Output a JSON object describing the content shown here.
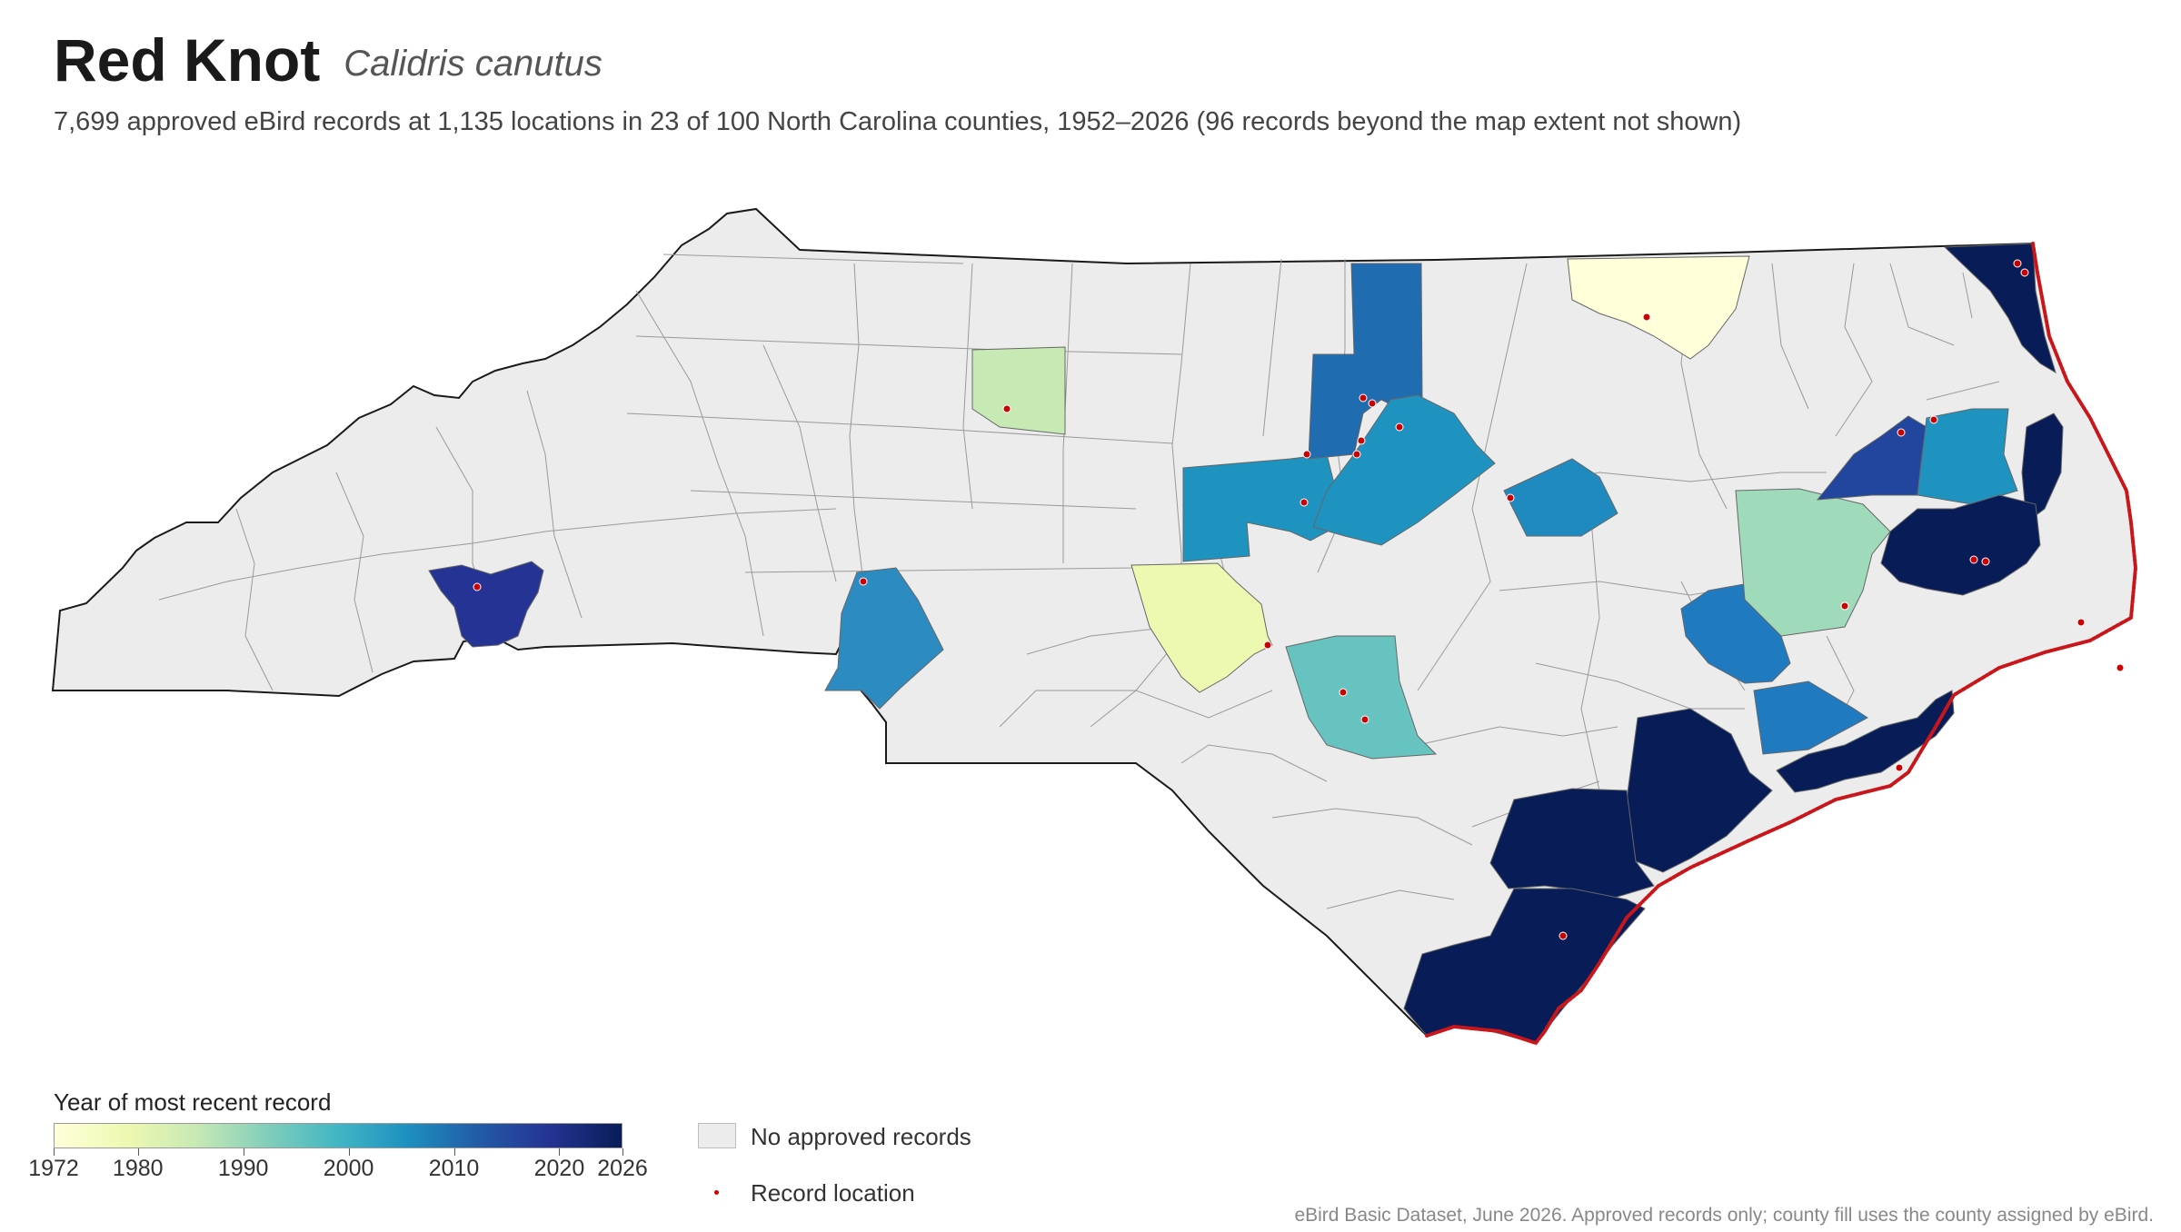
{
  "header": {
    "common_name": "Red Knot",
    "scientific_name": "Calidris canutus",
    "subtitle": "7,699 approved eBird records at 1,135 locations in 23 of 100 North Carolina counties, 1952–2026 (96 records beyond the map extent not shown)"
  },
  "legend": {
    "colorbar_title": "Year of most recent record",
    "range": [
      1972,
      2026
    ],
    "ticks": [
      "1972",
      "1980",
      "1990",
      "2000",
      "2010",
      "2020",
      "2026"
    ],
    "colormap": "YlGnBu",
    "no_records_label": "No approved records",
    "no_records_color": "#ececec",
    "record_label": "Record location",
    "record_color": "#cc0000"
  },
  "source_note": "eBird Basic Dataset, June 2026. Approved records only; county fill uses the county assigned by eBird.",
  "map": {
    "highlighted_county_fill_years": [
      1972,
      1976,
      1986,
      1992,
      1997,
      2002,
      2004,
      2006,
      2008,
      2010,
      2013,
      2016,
      2019,
      2026
    ]
  }
}
